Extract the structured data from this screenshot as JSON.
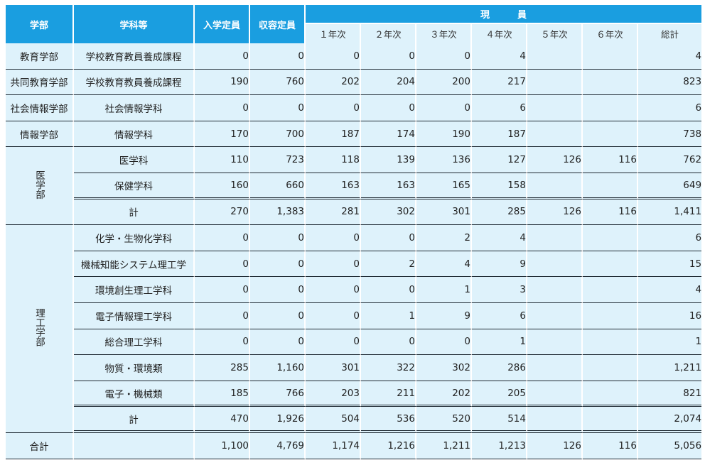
{
  "headers": {
    "faculty": "学部",
    "department": "学科等",
    "admission_quota": "入学定員",
    "capacity": "収容定員",
    "current": "現　　　員",
    "years": [
      "１年次",
      "２年次",
      "３年次",
      "４年次",
      "５年次",
      "６年次",
      "総計"
    ]
  },
  "rows": [
    {
      "faculty": "教育学部",
      "department": "学校教育教員養成課程",
      "cells": [
        "0",
        "0",
        "0",
        "0",
        "0",
        "4",
        "",
        "",
        "4"
      ]
    },
    {
      "faculty": "共同教育学部",
      "department": "学校教育教員養成課程",
      "cells": [
        "190",
        "760",
        "202",
        "204",
        "200",
        "217",
        "",
        "",
        "823"
      ]
    },
    {
      "faculty": "社会情報学部",
      "department": "社会情報学科",
      "cells": [
        "0",
        "0",
        "0",
        "0",
        "0",
        "6",
        "",
        "",
        "6"
      ]
    },
    {
      "faculty": "情報学部",
      "department": "情報学科",
      "cells": [
        "170",
        "700",
        "187",
        "174",
        "190",
        "187",
        "",
        "",
        "738"
      ]
    }
  ],
  "medicine": {
    "faculty": "医学部",
    "rows": [
      {
        "department": "医学科",
        "cells": [
          "110",
          "723",
          "118",
          "139",
          "136",
          "127",
          "126",
          "116",
          "762"
        ]
      },
      {
        "department": "保健学科",
        "cells": [
          "160",
          "660",
          "163",
          "163",
          "165",
          "158",
          "",
          "",
          "649"
        ]
      }
    ],
    "subtotal": {
      "label": "計",
      "cells": [
        "270",
        "1,383",
        "281",
        "302",
        "301",
        "285",
        "126",
        "116",
        "1,411"
      ]
    }
  },
  "science": {
    "faculty": "理工学部",
    "rows": [
      {
        "department": "化学・生物化学科",
        "cells": [
          "0",
          "0",
          "0",
          "0",
          "2",
          "4",
          "",
          "",
          "6"
        ]
      },
      {
        "department": "機械知能システム理工学",
        "cells": [
          "0",
          "0",
          "0",
          "2",
          "4",
          "9",
          "",
          "",
          "15"
        ]
      },
      {
        "department": "環境創生理工学科",
        "cells": [
          "0",
          "0",
          "0",
          "0",
          "1",
          "3",
          "",
          "",
          "4"
        ]
      },
      {
        "department": "電子情報理工学科",
        "cells": [
          "0",
          "0",
          "0",
          "1",
          "9",
          "6",
          "",
          "",
          "16"
        ]
      },
      {
        "department": "総合理工学科",
        "cells": [
          "0",
          "0",
          "0",
          "0",
          "0",
          "1",
          "",
          "",
          "1"
        ]
      },
      {
        "department": "物質・環境類",
        "cells": [
          "285",
          "1,160",
          "301",
          "322",
          "302",
          "286",
          "",
          "",
          "1,211"
        ]
      },
      {
        "department": "電子・機械類",
        "cells": [
          "185",
          "766",
          "203",
          "211",
          "202",
          "205",
          "",
          "",
          "821"
        ]
      }
    ],
    "subtotal": {
      "label": "計",
      "cells": [
        "470",
        "1,926",
        "504",
        "536",
        "520",
        "514",
        "",
        "",
        "2,074"
      ]
    }
  },
  "total": {
    "label": "合計",
    "department": "",
    "cells": [
      "1,100",
      "4,769",
      "1,174",
      "1,216",
      "1,211",
      "1,213",
      "126",
      "116",
      "5,056"
    ]
  }
}
